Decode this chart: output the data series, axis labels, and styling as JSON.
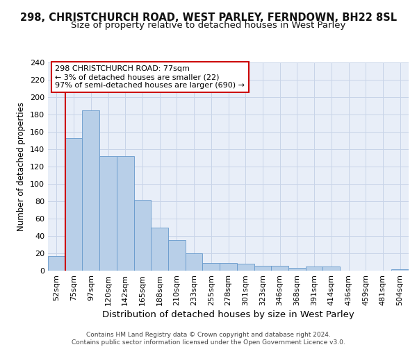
{
  "title1": "298, CHRISTCHURCH ROAD, WEST PARLEY, FERNDOWN, BH22 8SL",
  "title2": "Size of property relative to detached houses in West Parley",
  "xlabel": "Distribution of detached houses by size in West Parley",
  "ylabel": "Number of detached properties",
  "categories": [
    "52sqm",
    "75sqm",
    "97sqm",
    "120sqm",
    "142sqm",
    "165sqm",
    "188sqm",
    "210sqm",
    "233sqm",
    "255sqm",
    "278sqm",
    "301sqm",
    "323sqm",
    "346sqm",
    "368sqm",
    "391sqm",
    "414sqm",
    "436sqm",
    "459sqm",
    "481sqm",
    "504sqm"
  ],
  "values": [
    17,
    153,
    185,
    132,
    132,
    82,
    50,
    35,
    20,
    9,
    9,
    8,
    6,
    6,
    3,
    5,
    5,
    0,
    0,
    0,
    2
  ],
  "bar_color": "#b8cfe8",
  "bar_edgecolor": "#6699cc",
  "vline_color": "#cc0000",
  "annotation_text": "298 CHRISTCHURCH ROAD: 77sqm\n← 3% of detached houses are smaller (22)\n97% of semi-detached houses are larger (690) →",
  "annotation_box_edgecolor": "#cc0000",
  "annotation_box_facecolor": "#ffffff",
  "ylim": [
    0,
    240
  ],
  "yticks": [
    0,
    20,
    40,
    60,
    80,
    100,
    120,
    140,
    160,
    180,
    200,
    220,
    240
  ],
  "grid_color": "#c8d4e8",
  "background_color": "#e8eef8",
  "footer": "Contains HM Land Registry data © Crown copyright and database right 2024.\nContains public sector information licensed under the Open Government Licence v3.0.",
  "title1_fontsize": 10.5,
  "title2_fontsize": 9.5,
  "xlabel_fontsize": 9.5,
  "ylabel_fontsize": 8.5,
  "tick_fontsize": 8,
  "annotation_fontsize": 8,
  "footer_fontsize": 6.5
}
